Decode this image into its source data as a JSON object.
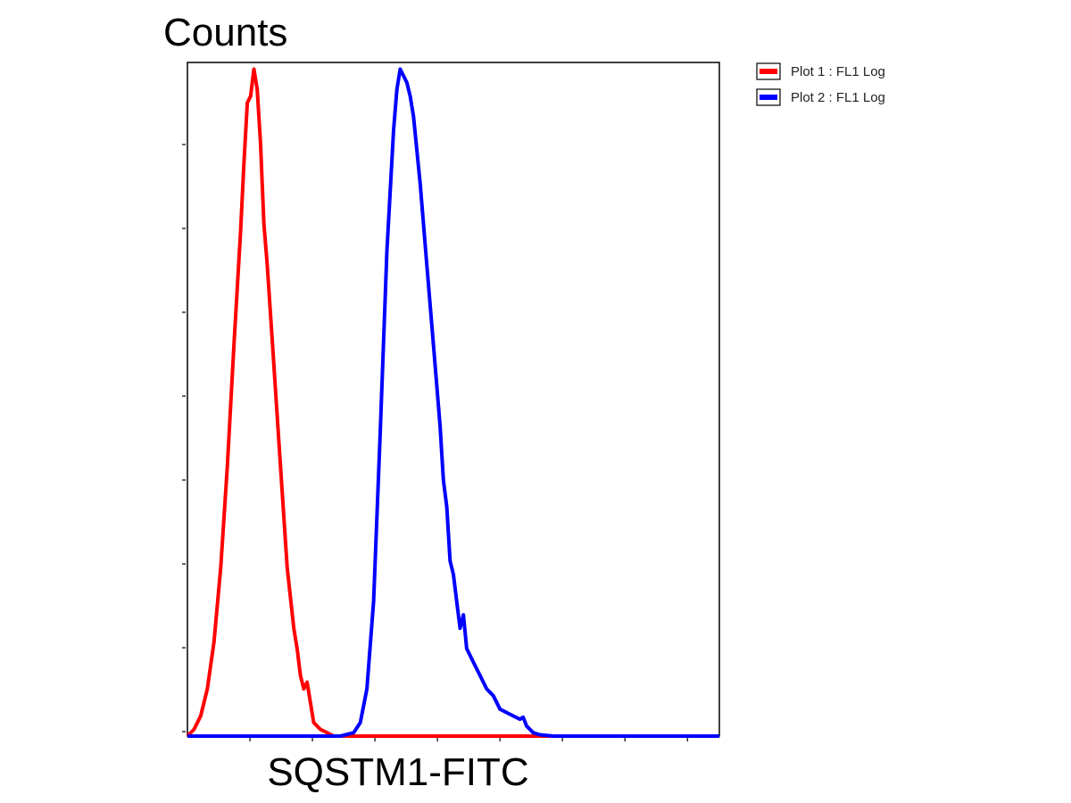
{
  "chart_data": {
    "type": "line",
    "xlabel": "SQSTM1-FITC",
    "ylabel": "Counts",
    "x_scale": "log",
    "xlim": [
      0,
      8
    ],
    "ylim": [
      0,
      100
    ],
    "grid": false,
    "legend_position": "top-right",
    "x_tick_count": 8,
    "y_tick_count": 8,
    "series": [
      {
        "name": "Plot 1 : FL1 Log",
        "color": "#ff0000",
        "points": [
          [
            0.0,
            0
          ],
          [
            0.1,
            1
          ],
          [
            0.2,
            3
          ],
          [
            0.3,
            7
          ],
          [
            0.4,
            14
          ],
          [
            0.5,
            25
          ],
          [
            0.6,
            40
          ],
          [
            0.7,
            58
          ],
          [
            0.8,
            75
          ],
          [
            0.85,
            85
          ],
          [
            0.9,
            94
          ],
          [
            0.95,
            95
          ],
          [
            1.0,
            99
          ],
          [
            1.05,
            96
          ],
          [
            1.1,
            88
          ],
          [
            1.15,
            76
          ],
          [
            1.2,
            70
          ],
          [
            1.3,
            55
          ],
          [
            1.4,
            40
          ],
          [
            1.5,
            25
          ],
          [
            1.6,
            16
          ],
          [
            1.65,
            13
          ],
          [
            1.7,
            9
          ],
          [
            1.75,
            7
          ],
          [
            1.8,
            8
          ],
          [
            1.85,
            5
          ],
          [
            1.9,
            2
          ],
          [
            2.0,
            1
          ],
          [
            2.1,
            0.5
          ],
          [
            2.2,
            0
          ],
          [
            8.0,
            0
          ]
        ]
      },
      {
        "name": "Plot 2 : FL1 Log",
        "color": "#0000ff",
        "points": [
          [
            0.0,
            0
          ],
          [
            2.3,
            0
          ],
          [
            2.5,
            0.5
          ],
          [
            2.6,
            2
          ],
          [
            2.7,
            7
          ],
          [
            2.8,
            20
          ],
          [
            2.9,
            45
          ],
          [
            3.0,
            72
          ],
          [
            3.1,
            90
          ],
          [
            3.15,
            96
          ],
          [
            3.2,
            99
          ],
          [
            3.3,
            97
          ],
          [
            3.35,
            95
          ],
          [
            3.4,
            92
          ],
          [
            3.5,
            82
          ],
          [
            3.6,
            70
          ],
          [
            3.7,
            58
          ],
          [
            3.8,
            46
          ],
          [
            3.85,
            38
          ],
          [
            3.9,
            34
          ],
          [
            3.95,
            26
          ],
          [
            4.0,
            24
          ],
          [
            4.05,
            20
          ],
          [
            4.1,
            16
          ],
          [
            4.15,
            18
          ],
          [
            4.2,
            13
          ],
          [
            4.3,
            11
          ],
          [
            4.4,
            9
          ],
          [
            4.5,
            7
          ],
          [
            4.6,
            6
          ],
          [
            4.7,
            4
          ],
          [
            4.8,
            3.5
          ],
          [
            4.9,
            3
          ],
          [
            5.0,
            2.5
          ],
          [
            5.05,
            2.8
          ],
          [
            5.1,
            1.5
          ],
          [
            5.2,
            0.5
          ],
          [
            5.3,
            0.2
          ],
          [
            5.5,
            0
          ],
          [
            8.0,
            0
          ]
        ]
      }
    ]
  }
}
